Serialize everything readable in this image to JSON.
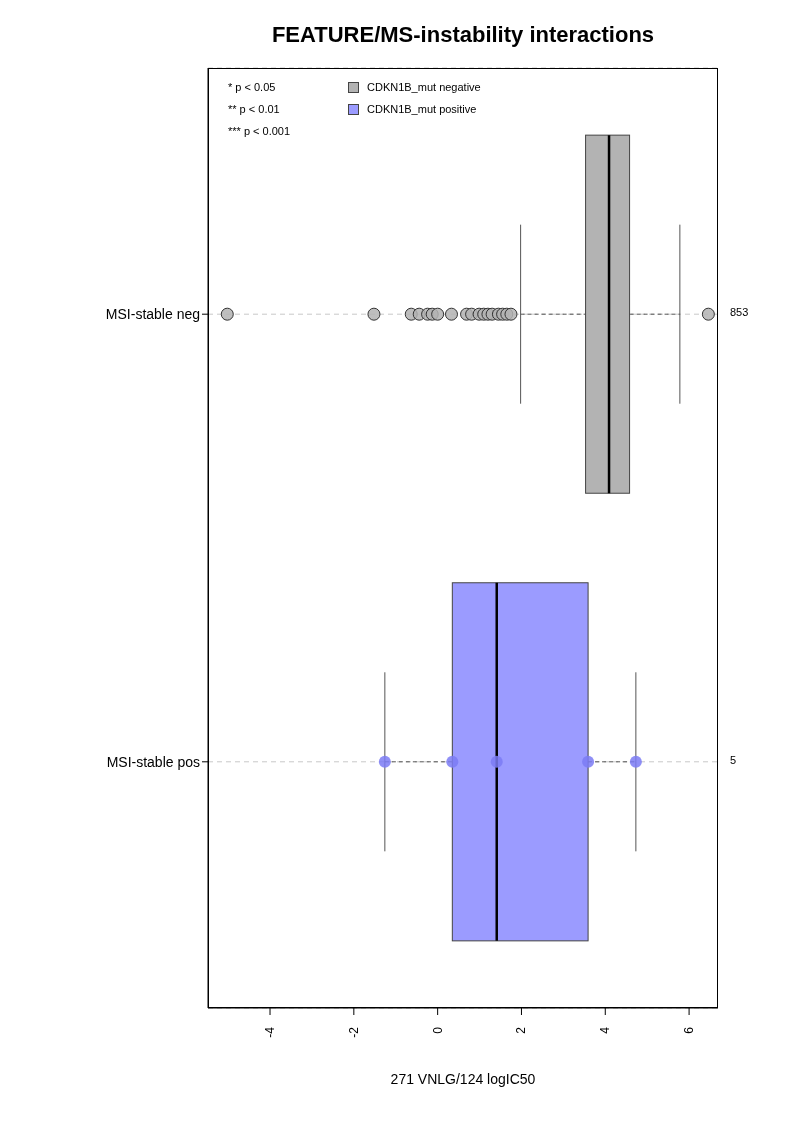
{
  "chart_data": {
    "type": "box",
    "title": "FEATURE/MS-instability interactions",
    "xlabel": "271 VNLG/124 logIC50",
    "orientation": "horizontal",
    "categories": [
      "MSI-stable neg",
      "MSI-stable pos"
    ],
    "series": [
      {
        "type": "box",
        "name": "CDKN1B_mut negative",
        "color": "#b3b3b3",
        "boxes": [
          {
            "low": 1.98,
            "q1": 3.53,
            "median": 4.09,
            "q3": 4.58,
            "high": 5.78,
            "outliers": [
              -5.02,
              -1.52,
              -0.63,
              -0.44,
              -0.24,
              -0.13,
              0.0,
              0.33,
              0.69,
              0.81,
              0.99,
              1.1,
              1.2,
              1.3,
              1.45,
              1.55,
              1.65,
              1.75,
              6.46
            ]
          },
          null
        ]
      },
      {
        "type": "box",
        "name": "CDKN1B_mut positive",
        "color": "#9b9bff",
        "boxes": [
          null,
          {
            "low": -1.26,
            "q1": 0.35,
            "median": 1.41,
            "q3": 3.59,
            "high": 4.73
          }
        ]
      },
      {
        "type": "scatter",
        "color": "#7b7bf5",
        "x": [
          "MSI-stable pos",
          "MSI-stable pos",
          "MSI-stable pos",
          "MSI-stable pos",
          "MSI-stable pos"
        ],
        "values": [
          -1.26,
          0.35,
          1.41,
          3.59,
          4.73
        ]
      }
    ],
    "xlim": [
      -5.48,
      6.69
    ],
    "xticks": [
      -4,
      -2,
      0,
      2,
      4,
      6
    ],
    "grid": "y",
    "legend": "top left",
    "y2_categories": [
      "853",
      "5"
    ],
    "annotations": [
      "* p < 0.05",
      "** p < 0.01",
      "*** p < 0.001"
    ]
  }
}
